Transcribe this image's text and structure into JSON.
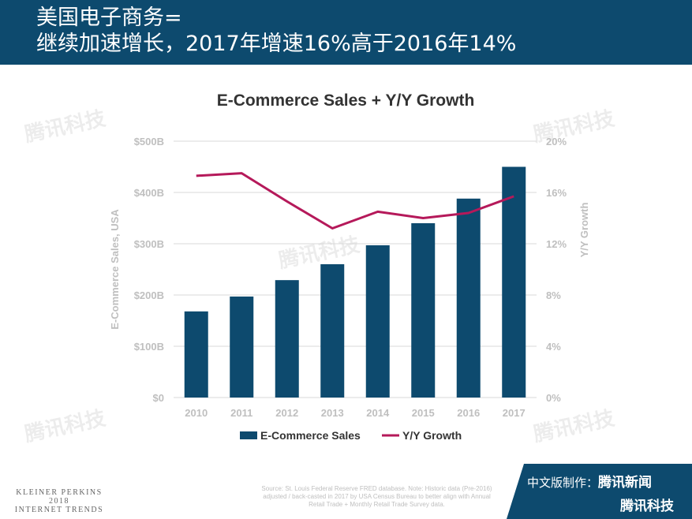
{
  "header": {
    "line1": "美国电子商务=",
    "line2": "继续加速增长，2017年增速16%高于2016年14%"
  },
  "chart_data": {
    "type": "bar",
    "title": "E-Commerce Sales + Y/Y Growth",
    "categories": [
      "2010",
      "2011",
      "2012",
      "2013",
      "2014",
      "2015",
      "2016",
      "2017"
    ],
    "series": [
      {
        "name": "E-Commerce Sales",
        "type": "bar",
        "axis": "left",
        "color": "#0d4a6e",
        "values": [
          168,
          197,
          229,
          260,
          297,
          340,
          388,
          450
        ]
      },
      {
        "name": "Y/Y Growth",
        "type": "line",
        "axis": "right",
        "color": "#b5195a",
        "values": [
          17.3,
          17.5,
          15.3,
          13.2,
          14.5,
          14.0,
          14.4,
          15.7
        ]
      }
    ],
    "ylabel": "E-Commerce Sales, USA",
    "y2label": "Y/Y Growth",
    "ylim": [
      0,
      500
    ],
    "y2lim": [
      0,
      20
    ],
    "yticks": [
      "$0",
      "$100B",
      "$200B",
      "$300B",
      "$400B",
      "$500B"
    ],
    "y2ticks": [
      "0%",
      "4%",
      "8%",
      "12%",
      "16%",
      "20%"
    ],
    "grid": true,
    "legend": "bottom"
  },
  "watermark": "腾讯科技",
  "footer": {
    "company": "KLEINER PERKINS",
    "year": "2018",
    "report": "INTERNET TRENDS",
    "source": "Source: St. Louis Federal Reserve FRED database. Note: Historic data (Pre-2016) adjusted / back-casted in 2017 by USA Census Bureau to better align with Annual Retail Trade + Monthly Retail Trade Survey data.",
    "badge_made": "中文版制作：",
    "badge_news": "腾讯新闻",
    "badge_tech": "腾讯科技"
  }
}
